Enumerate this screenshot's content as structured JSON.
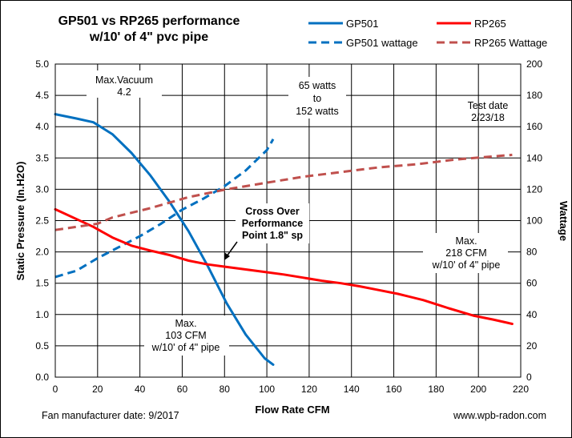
{
  "chart_data": {
    "type": "line",
    "title_line1": "GP501 vs RP265 performance",
    "title_line2": "w/10' of 4\" pvc pipe",
    "xlabel": "Flow Rate  CFM",
    "ylabel": "Static Pressure (In.H2O)",
    "y2label": "Wattage",
    "xlim": [
      0,
      220
    ],
    "ylim": [
      0,
      5
    ],
    "y2lim": [
      0,
      200
    ],
    "xticks": [
      "0",
      "20",
      "40",
      "60",
      "80",
      "100",
      "120",
      "140",
      "160",
      "180",
      "200",
      "220"
    ],
    "yticks": [
      "0.0",
      "0.5",
      "1.0",
      "1.5",
      "2.0",
      "2.5",
      "3.0",
      "3.5",
      "4.0",
      "4.5",
      "5.0"
    ],
    "y2ticks": [
      "0",
      "20",
      "40",
      "60",
      "80",
      "100",
      "120",
      "140",
      "160",
      "180",
      "200"
    ],
    "grid": true,
    "legend_position": "top-right",
    "colors": {
      "gp501": "#0070C0",
      "rp265": "#FF0000",
      "rp265_wattage": "#C0504D"
    },
    "series": [
      {
        "name": "GP501",
        "axis": "left",
        "style": "solid",
        "x": [
          0,
          10,
          18,
          27,
          36,
          45,
          54,
          63,
          72,
          81,
          90,
          99,
          103
        ],
        "y": [
          4.2,
          4.13,
          4.07,
          3.88,
          3.58,
          3.22,
          2.8,
          2.33,
          1.78,
          1.18,
          0.68,
          0.3,
          0.2
        ]
      },
      {
        "name": "GP501 wattage",
        "axis": "right",
        "style": "dashed",
        "x": [
          0,
          10,
          20,
          30,
          40,
          50,
          60,
          70,
          80,
          90,
          100,
          103
        ],
        "y": [
          64,
          68,
          76,
          83,
          90,
          98,
          107,
          114,
          122,
          132,
          145,
          152
        ]
      },
      {
        "name": "RP265",
        "axis": "left",
        "style": "solid",
        "x": [
          0,
          18,
          27,
          36,
          45,
          54,
          63,
          72,
          81,
          90,
          99,
          108,
          117,
          126,
          135,
          144,
          153,
          162,
          174,
          186,
          198,
          207,
          216
        ],
        "y": [
          2.68,
          2.4,
          2.23,
          2.1,
          2.02,
          1.95,
          1.86,
          1.8,
          1.76,
          1.72,
          1.68,
          1.64,
          1.59,
          1.54,
          1.5,
          1.45,
          1.39,
          1.33,
          1.23,
          1.1,
          0.98,
          0.92,
          0.85
        ]
      },
      {
        "name": "RP265 Wattage",
        "axis": "right",
        "style": "dashed",
        "x": [
          0,
          20,
          27,
          45,
          63,
          81,
          99,
          117,
          135,
          153,
          171,
          189,
          207,
          216
        ],
        "y": [
          94,
          98,
          102,
          108,
          115,
          120,
          124,
          128,
          131,
          134,
          136,
          139,
          141,
          142
        ]
      }
    ],
    "annotations": [
      {
        "lines": [
          "Max.Vacuum",
          "4.2"
        ]
      },
      {
        "lines": [
          "65 watts",
          "to",
          "152 watts"
        ]
      },
      {
        "lines": [
          "Test date",
          "2/23/18"
        ]
      },
      {
        "lines": [
          "Cross Over",
          "Performance",
          "Point 1.8\" sp"
        ]
      },
      {
        "lines": [
          "Max.",
          "218 CFM",
          "w/10' of 4\" pipe"
        ]
      },
      {
        "lines": [
          "Max.",
          "103 CFM",
          "w/10' of 4\" pipe"
        ]
      }
    ],
    "footer_left": "Fan manufacturer date: 9/2017",
    "footer_right": "www.wpb-radon.com"
  }
}
